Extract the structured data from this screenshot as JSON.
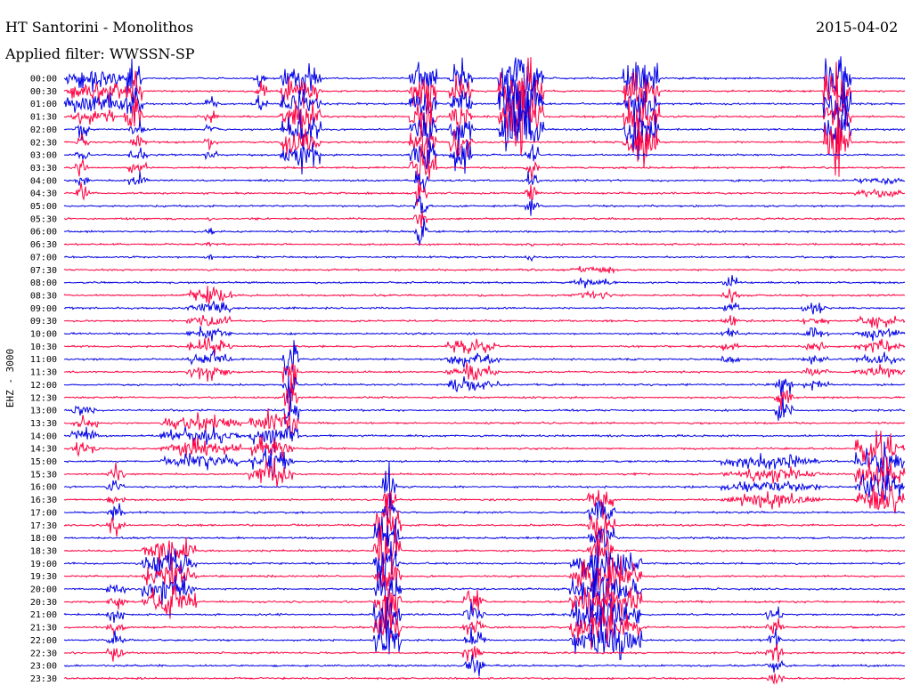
{
  "chart_data": {
    "type": "line",
    "title": "HT Santorini - Monolithos",
    "date": "2015-04-02",
    "filter_label": "Applied filter: WWSSN-SP",
    "channel_label": "EHZ - 3000",
    "x": [
      "00:00",
      "00:30",
      "01:00",
      "01:30",
      "02:00",
      "02:30",
      "03:00",
      "03:30",
      "04:00",
      "04:30",
      "05:00",
      "05:30",
      "06:00",
      "06:30",
      "07:00",
      "07:30",
      "08:00",
      "08:30",
      "09:00",
      "09:30",
      "10:00",
      "10:30",
      "11:00",
      "11:30",
      "12:00",
      "12:30",
      "13:00",
      "13:30",
      "14:00",
      "14:30",
      "15:00",
      "15:30",
      "16:00",
      "16:30",
      "17:00",
      "17:30",
      "18:00",
      "18:30",
      "19:00",
      "19:30",
      "20:00",
      "20:30",
      "21:00",
      "21:30",
      "22:00",
      "22:30",
      "23:00",
      "23:30"
    ],
    "xlabel": "",
    "ylabel": "EHZ - 3000",
    "colors": [
      "#0000e6",
      "#ff0040"
    ],
    "series": []
  }
}
